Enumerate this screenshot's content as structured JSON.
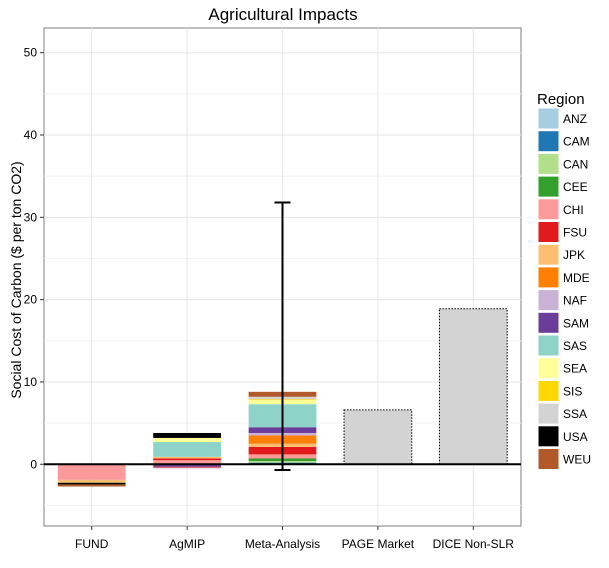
{
  "chart_data": {
    "type": "bar",
    "stacked": true,
    "title": "Agricultural Impacts",
    "xlabel": "",
    "ylabel": "Social Cost of Carbon ($ per ton CO2)",
    "ylim": [
      -7.5,
      53
    ],
    "yticks": [
      0,
      10,
      20,
      30,
      40,
      50
    ],
    "grid": true,
    "legend": {
      "title": "Region",
      "position": "right",
      "entries": [
        {
          "name": "ANZ",
          "color": "#a6cee3"
        },
        {
          "name": "CAM",
          "color": "#1f78b4"
        },
        {
          "name": "CAN",
          "color": "#b2df8a"
        },
        {
          "name": "CEE",
          "color": "#33a02c"
        },
        {
          "name": "CHI",
          "color": "#fb9a99"
        },
        {
          "name": "FSU",
          "color": "#e31a1c"
        },
        {
          "name": "JPK",
          "color": "#fdbf6f"
        },
        {
          "name": "MDE",
          "color": "#ff7f00"
        },
        {
          "name": "NAF",
          "color": "#cab2d6"
        },
        {
          "name": "SAM",
          "color": "#6a3d9a"
        },
        {
          "name": "SAS",
          "color": "#8dd3c7"
        },
        {
          "name": "SEA",
          "color": "#ffff99"
        },
        {
          "name": "SIS",
          "color": "#ffd700"
        },
        {
          "name": "SSA",
          "color": "#d3d3d3"
        },
        {
          "name": "USA",
          "color": "#000000"
        },
        {
          "name": "WEU",
          "color": "#b15928"
        }
      ]
    },
    "categories": [
      "FUND",
      "AgMIP",
      "Meta-Analysis",
      "PAGE Market",
      "DICE Non-SLR"
    ],
    "bars": [
      {
        "category": "FUND",
        "segments": [
          {
            "region": "ANZ",
            "value": 0.05
          },
          {
            "region": "CAN",
            "value": 0.05
          },
          {
            "region": "CHI",
            "value": -1.9
          },
          {
            "region": "JPK",
            "value": -0.35
          },
          {
            "region": "USA",
            "value": -0.2
          },
          {
            "region": "WEU",
            "value": -0.25
          }
        ]
      },
      {
        "category": "AgMIP",
        "segments": [
          {
            "region": "CHI",
            "value": 0.5
          },
          {
            "region": "FSU",
            "value": 0.2
          },
          {
            "region": "JPK",
            "value": 0.2
          },
          {
            "region": "SAS",
            "value": 1.8
          },
          {
            "region": "SEA",
            "value": 0.5
          },
          {
            "region": "USA",
            "value": 0.6
          },
          {
            "region": "CAM",
            "value": -0.1
          },
          {
            "region": "SAM",
            "value": -0.2
          },
          {
            "region": "FSU",
            "value": -0.1
          },
          {
            "region": "NAF",
            "value": -0.1
          }
        ]
      },
      {
        "category": "Meta-Analysis",
        "segments": [
          {
            "region": "CAM",
            "value": 0.2
          },
          {
            "region": "CAN",
            "value": 0.2
          },
          {
            "region": "CEE",
            "value": 0.3
          },
          {
            "region": "CHI",
            "value": 0.5
          },
          {
            "region": "FSU",
            "value": 0.9
          },
          {
            "region": "JPK",
            "value": 0.4
          },
          {
            "region": "MDE",
            "value": 1.0
          },
          {
            "region": "NAF",
            "value": 0.3
          },
          {
            "region": "SAM",
            "value": 0.7
          },
          {
            "region": "SAS",
            "value": 2.8
          },
          {
            "region": "SEA",
            "value": 0.5
          },
          {
            "region": "SIS",
            "value": 0.1
          },
          {
            "region": "SSA",
            "value": 0.3
          },
          {
            "region": "WEU",
            "value": 0.6
          }
        ],
        "error_bar": {
          "low": -0.7,
          "high": 31.8
        }
      },
      {
        "category": "PAGE Market",
        "segments": [
          {
            "region": "SSA",
            "value": 6.6
          }
        ],
        "style": "dotted-outline"
      },
      {
        "category": "DICE Non-SLR",
        "segments": [
          {
            "region": "SSA",
            "value": 18.9
          }
        ],
        "style": "dotted-outline"
      }
    ]
  }
}
